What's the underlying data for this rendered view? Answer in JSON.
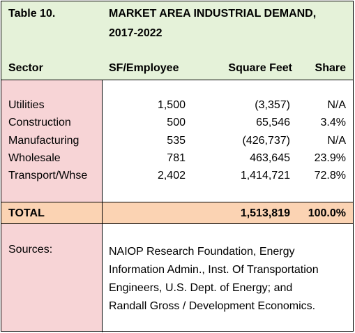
{
  "table": {
    "number": "Table 10.",
    "title_line1": "MARKET AREA INDUSTRIAL DEMAND,",
    "title_line2": "2017-2022",
    "headers": {
      "sector": "Sector",
      "sf_per_employee": "SF/Employee",
      "square_feet": "Square Feet",
      "share": "Share"
    },
    "rows": [
      {
        "sector": "Utilities",
        "sf_per_employee": "1,500",
        "square_feet": "(3,357)",
        "share": "N/A"
      },
      {
        "sector": "Construction",
        "sf_per_employee": "500",
        "square_feet": "65,546",
        "share": "3.4%"
      },
      {
        "sector": "Manufacturing",
        "sf_per_employee": "535",
        "square_feet": "(426,737)",
        "share": "N/A"
      },
      {
        "sector": "Wholesale",
        "sf_per_employee": "781",
        "square_feet": "463,645",
        "share": "23.9%"
      },
      {
        "sector": "Transport/Whse",
        "sf_per_employee": "2,402",
        "square_feet": "1,414,721",
        "share": "72.8%"
      }
    ],
    "total": {
      "label": "TOTAL",
      "square_feet": "1,513,819",
      "share": "100.0%"
    },
    "sources_label": "Sources:",
    "sources_text": "NAIOP Research Foundation, Energy Information Admin., Inst. Of Transportation Engineers, U.S. Dept. of Energy; and Randall Gross / Development Economics.",
    "colors": {
      "header_green": "#e5f2d9",
      "label_pink": "#f7d4d6",
      "total_orange": "#fbd3b3"
    }
  }
}
